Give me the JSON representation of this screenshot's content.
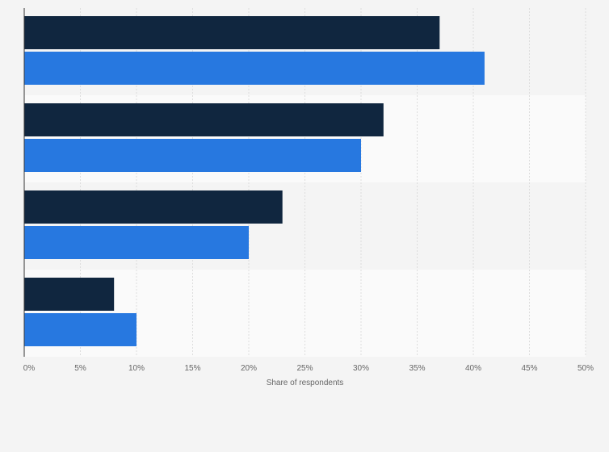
{
  "chart_data": {
    "type": "bar",
    "orientation": "horizontal",
    "categories": [
      "",
      "",
      "",
      ""
    ],
    "series": [
      {
        "values": [
          37,
          32,
          23,
          8
        ]
      },
      {
        "values": [
          41,
          30,
          20,
          10
        ]
      }
    ],
    "xlabel": "Share of respondents",
    "xlim": [
      0,
      50
    ],
    "xticks": [
      0,
      5,
      10,
      15,
      20,
      25,
      30,
      35,
      40,
      45,
      50
    ],
    "tick_format": "%",
    "grid": true,
    "legend": "none"
  },
  "colors": {
    "series": [
      "#10263f",
      "#2778e0"
    ],
    "band_dark": "#f4f4f4",
    "band_light": "#fafafa",
    "grid": "#dddddd",
    "axis": "#333333"
  }
}
